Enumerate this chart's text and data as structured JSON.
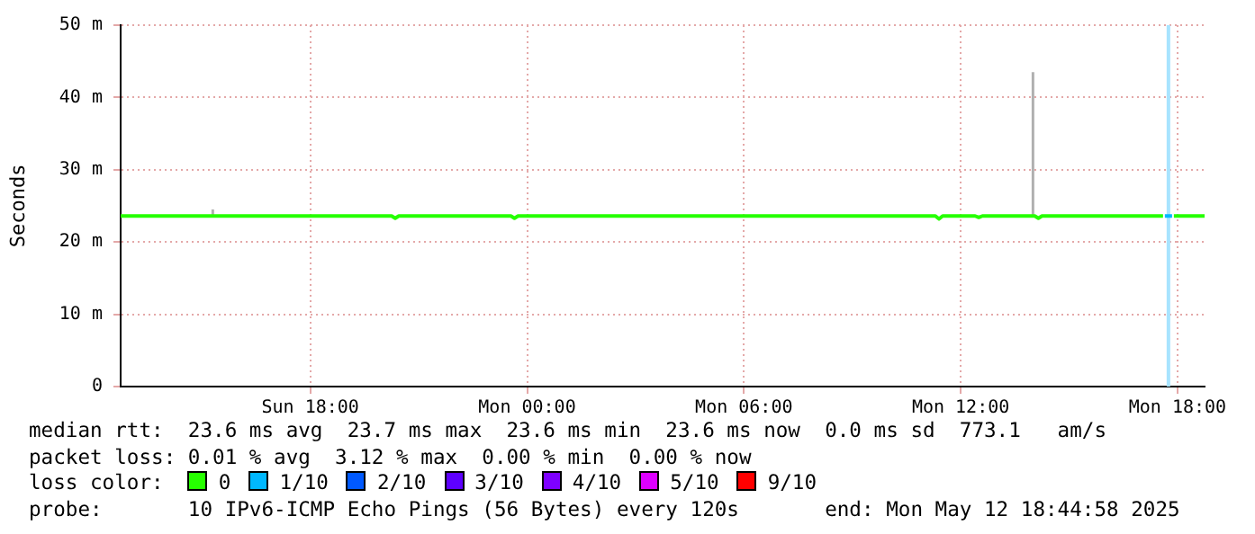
{
  "chart_data": {
    "type": "line",
    "ylabel": "Seconds",
    "legend_title": "loss color:",
    "xlim": [
      "2025-05-11T12:45",
      "2025-05-12T18:45"
    ],
    "xticks": [
      {
        "value": "2025-05-11T18:00",
        "label": "Sun 18:00"
      },
      {
        "value": "2025-05-12T00:00",
        "label": "Mon 00:00"
      },
      {
        "value": "2025-05-12T06:00",
        "label": "Mon 06:00"
      },
      {
        "value": "2025-05-12T12:00",
        "label": "Mon 12:00"
      },
      {
        "value": "2025-05-12T18:00",
        "label": "Mon 18:00"
      }
    ],
    "ylim": [
      0,
      50
    ],
    "yticks": [
      {
        "value": 0,
        "label": "0"
      },
      {
        "value": 10,
        "label": "10 m"
      },
      {
        "value": 20,
        "label": "20 m"
      },
      {
        "value": 30,
        "label": "30 m"
      },
      {
        "value": 40,
        "label": "40 m"
      },
      {
        "value": 50,
        "label": "50 m"
      }
    ],
    "grid": true,
    "legend": "bottom",
    "marker": "none",
    "series": [
      {
        "name": "0",
        "color": "#26ff00",
        "x": [
          "2025-05-11T12:45",
          "2025-05-11T15:15",
          "2025-05-11T15:18",
          "2025-05-11T15:21",
          "2025-05-11T20:15",
          "2025-05-11T20:21",
          "2025-05-11T20:27",
          "2025-05-11T23:33",
          "2025-05-11T23:39",
          "2025-05-11T23:45",
          "2025-05-12T11:18",
          "2025-05-12T11:24",
          "2025-05-12T11:30",
          "2025-05-12T12:24",
          "2025-05-12T12:30",
          "2025-05-12T12:36",
          "2025-05-12T13:57",
          "2025-05-12T14:00",
          "2025-05-12T14:03",
          "2025-05-12T14:09",
          "2025-05-12T14:15",
          "2025-05-12T17:36",
          "2025-05-12T17:45",
          "2025-05-12T17:54",
          "2025-05-12T18:45"
        ],
        "values": [
          23.6,
          23.6,
          23.6,
          23.6,
          23.6,
          23.3,
          23.6,
          23.6,
          23.3,
          23.6,
          23.6,
          23.2,
          23.6,
          23.6,
          23.4,
          23.6,
          23.6,
          23.6,
          23.6,
          23.3,
          23.6,
          23.6,
          null,
          23.6,
          23.6
        ],
        "errors": [
          null,
          null,
          [
            23.6,
            24.5
          ],
          null,
          null,
          null,
          null,
          null,
          null,
          null,
          null,
          null,
          null,
          null,
          null,
          null,
          null,
          [
            23.6,
            43.5
          ],
          null,
          null,
          null,
          null,
          null,
          null,
          null
        ]
      },
      {
        "name": "1/10",
        "color": "#00b8ff",
        "x": [
          "2025-05-12T17:39",
          "2025-05-12T17:51"
        ],
        "values": [
          23.6,
          23.6
        ]
      },
      {
        "name": "2/10",
        "color": "#0059ff"
      },
      {
        "name": "3/10",
        "color": "#5e00ff"
      },
      {
        "name": "4/10",
        "color": "#7e00ff"
      },
      {
        "name": "5/10",
        "color": "#dd00ff"
      },
      {
        "name": "9/10",
        "color": "#ff0000"
      }
    ],
    "bands": [
      {
        "axis": "x",
        "from": "2025-05-12T17:42",
        "to": "2025-05-12T17:48",
        "color": "#a8e4ff"
      }
    ],
    "annotations": [
      "median rtt:  23.6 ms avg  23.7 ms max  23.6 ms min  23.6 ms now  0.0 ms sd  773.1   am/s",
      "packet loss: 0.01 % avg  3.12 % max  0.00 % min  0.00 % now",
      "probe:       10 IPv6-ICMP Echo Pings (56 Bytes) every 120s       end: Mon May 12 18:44:58 2025"
    ]
  }
}
